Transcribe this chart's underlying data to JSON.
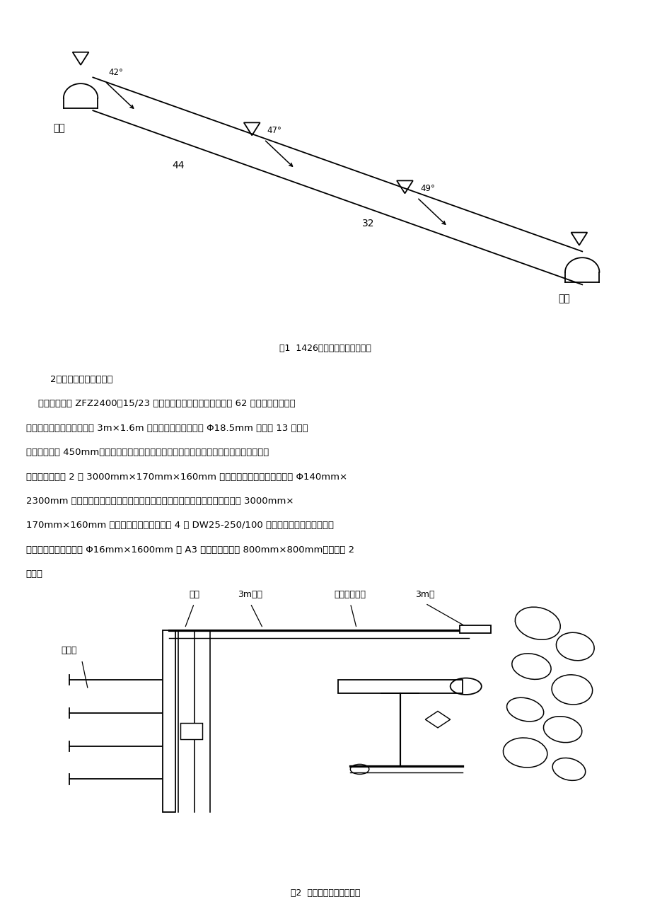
{
  "fig_width": 9.2,
  "fig_height": 13.02,
  "bg_color": "#ffffff",
  "fig1_caption": "图1  1426工作面收尾位置示意图",
  "fig2_caption": "图2  收尾后采面支护示意图",
  "label_fengdao": "风道",
  "label_yundao": "运道",
  "label_muzhu": "木柱",
  "label_3m_tuliang": "3m托梁",
  "label_danti": "单体液压支柱",
  "label_3m_ban": "3m板",
  "label_bang": "帮锚杆",
  "angle1": "42°",
  "angle2": "47°",
  "angle3": "49°",
  "sec1": "44",
  "sec2": "32",
  "text_title": "    2、拆除工作面支护情况",
  "text_lines": [
    "    该工作面采用 ZFZ2400－15/23 轻型放顶煤液压支架支护，共计 62 组，收尾采用网、",
    "绳、梁联合形式，支架上覆 3m×1.6m 菱形金属网，采面铺设 Φ18.5mm 钢丝绳 13 条，每",
    "条钢丝绳间距 450mm，第一条钢丝绳落于老塘底板，最后一条钢丝绳位于支架顶梁前方。",
    "每组支架上顶挑 2 块 3000mm×170mm×160mm 方木，方木的一端各打了一根 Φ140mm×",
    "2300mm 的圆木作为帮柱，圆木与方木之间钉有拉条，靠近圆木的外侧打一趟 3000mm×",
    "170mm×160mm 方木托梁，每块托梁下打 4 棵 DW25-250/100 型单体液压支柱。工作面煤",
    "壁侧打锚杆，锚杆使用 Φ16mm×1600mm 的 A3 钢锚杆，间排距 800mm×800mm。（如图 2",
    "所示）"
  ]
}
